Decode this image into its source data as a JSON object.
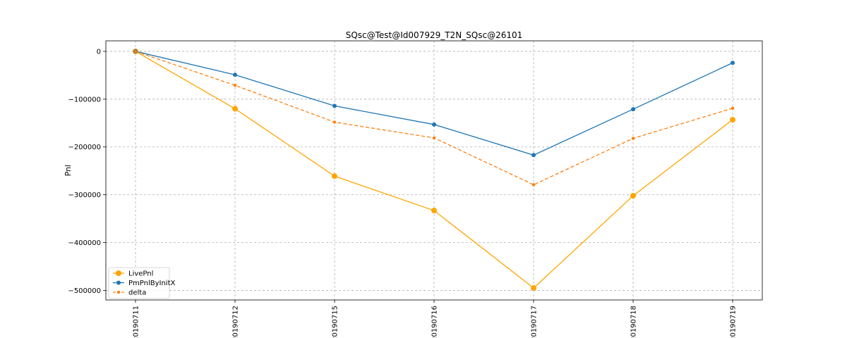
{
  "chart_data": {
    "type": "line",
    "title": "SQsc@Test@Id007929_T2N_SQsc@26101",
    "xlabel": "",
    "ylabel": "Pnl",
    "categories": [
      "20190711",
      "20190712",
      "20190715",
      "20190716",
      "20190717",
      "20190718",
      "20190719"
    ],
    "ylim": [
      -520000,
      22000
    ],
    "yticks": [
      0,
      -100000,
      -200000,
      -300000,
      -400000,
      -500000
    ],
    "ytick_labels": [
      "0",
      "−100000",
      "−200000",
      "−300000",
      "−400000",
      "−500000"
    ],
    "grid": true,
    "legend_position": "lower-left",
    "series": [
      {
        "name": "LivePnl",
        "color": "#ffa500",
        "linestyle": "solid",
        "marker": "circle-large",
        "values": [
          0,
          -120000,
          -261000,
          -333000,
          -495000,
          -302000,
          -143000
        ]
      },
      {
        "name": "PmPnlByInitX",
        "color": "#1f77b4",
        "linestyle": "solid",
        "marker": "circle",
        "values": [
          0,
          -49000,
          -114000,
          -153000,
          -217000,
          -121000,
          -24000
        ]
      },
      {
        "name": "delta",
        "color": "#ff7f0e",
        "linestyle": "dashed",
        "marker": "circle-small",
        "values": [
          0,
          -71000,
          -148000,
          -181000,
          -279000,
          -182000,
          -119000
        ]
      }
    ]
  }
}
